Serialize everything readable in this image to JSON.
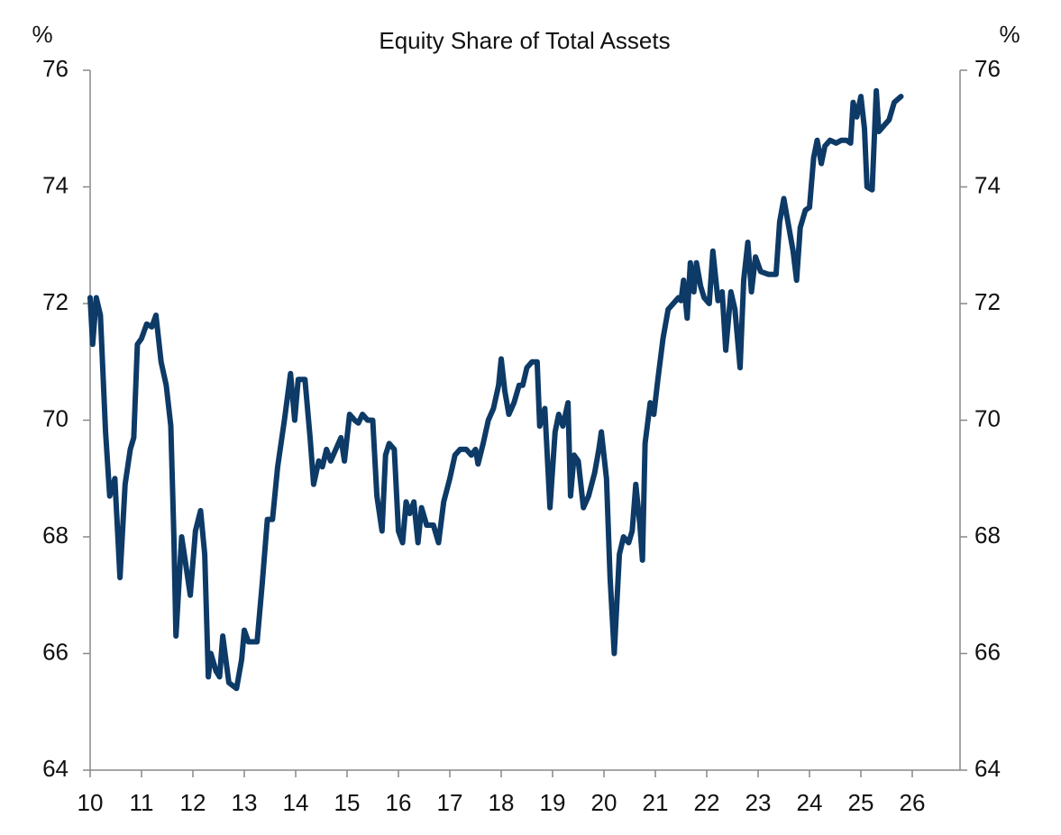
{
  "chart_data": {
    "type": "line",
    "title": "Equity Share of Total Assets",
    "y_label": "%",
    "y2_label": "%",
    "color": "#0d3a66",
    "x": [
      10.0,
      10.05,
      10.12,
      10.2,
      10.3,
      10.38,
      10.48,
      10.58,
      10.68,
      10.78,
      10.85,
      10.92,
      11.0,
      11.1,
      11.2,
      11.28,
      11.38,
      11.48,
      11.57,
      11.63,
      11.67,
      11.78,
      11.85,
      11.95,
      12.05,
      12.15,
      12.23,
      12.3,
      12.35,
      12.45,
      12.52,
      12.58,
      12.7,
      12.85,
      12.95,
      13.0,
      13.08,
      13.25,
      13.35,
      13.45,
      13.55,
      13.65,
      13.78,
      13.9,
      13.98,
      14.05,
      14.18,
      14.28,
      14.35,
      14.45,
      14.52,
      14.6,
      14.68,
      14.78,
      14.88,
      14.95,
      15.05,
      15.15,
      15.22,
      15.3,
      15.4,
      15.5,
      15.58,
      15.68,
      15.75,
      15.82,
      15.92,
      16.0,
      16.08,
      16.15,
      16.22,
      16.3,
      16.38,
      16.45,
      16.55,
      16.68,
      16.78,
      16.88,
      17.0,
      17.1,
      17.2,
      17.32,
      17.42,
      17.5,
      17.55,
      17.65,
      17.75,
      17.85,
      17.95,
      18.0,
      18.07,
      18.15,
      18.25,
      18.35,
      18.42,
      18.5,
      18.6,
      18.7,
      18.75,
      18.85,
      18.95,
      19.05,
      19.12,
      19.2,
      19.3,
      19.35,
      19.42,
      19.5,
      19.6,
      19.7,
      19.82,
      19.9,
      19.95,
      20.05,
      20.12,
      20.2,
      20.3,
      20.38,
      20.48,
      20.55,
      20.62,
      20.7,
      20.75,
      20.8,
      20.9,
      20.97,
      21.05,
      21.15,
      21.25,
      21.35,
      21.45,
      21.5,
      21.55,
      21.62,
      21.68,
      21.75,
      21.8,
      21.88,
      21.95,
      22.05,
      22.12,
      22.22,
      22.3,
      22.37,
      22.47,
      22.55,
      22.65,
      22.72,
      22.8,
      22.87,
      22.95,
      23.05,
      23.2,
      23.35,
      23.42,
      23.5,
      23.6,
      23.68,
      23.75,
      23.82,
      23.92,
      24.0,
      24.08,
      24.15,
      24.23,
      24.3,
      24.4,
      24.52,
      24.62,
      24.72,
      24.8,
      24.85,
      24.92,
      25.0,
      25.07,
      25.12,
      25.22,
      25.3,
      25.35,
      25.45,
      25.55,
      25.65,
      25.78
    ],
    "values": [
      72.1,
      71.3,
      72.1,
      71.8,
      69.8,
      68.7,
      69.0,
      67.3,
      68.9,
      69.5,
      69.7,
      71.3,
      71.4,
      71.65,
      71.6,
      71.8,
      71.0,
      70.6,
      69.9,
      68.0,
      66.3,
      68.0,
      67.6,
      67.0,
      68.1,
      68.45,
      67.7,
      65.6,
      66.0,
      65.7,
      65.6,
      66.3,
      65.5,
      65.4,
      65.9,
      66.4,
      66.2,
      66.2,
      67.2,
      68.3,
      68.3,
      69.2,
      70.0,
      70.8,
      70.0,
      70.7,
      70.7,
      69.7,
      68.9,
      69.3,
      69.2,
      69.5,
      69.3,
      69.5,
      69.7,
      69.3,
      70.1,
      70.0,
      69.95,
      70.1,
      70.0,
      70.0,
      68.7,
      68.1,
      69.4,
      69.6,
      69.5,
      68.1,
      67.9,
      68.6,
      68.4,
      68.6,
      67.9,
      68.5,
      68.2,
      68.2,
      67.9,
      68.6,
      69.0,
      69.4,
      69.5,
      69.5,
      69.4,
      69.5,
      69.25,
      69.6,
      70.0,
      70.2,
      70.6,
      71.05,
      70.5,
      70.1,
      70.3,
      70.6,
      70.6,
      70.9,
      71.0,
      71.0,
      69.9,
      70.2,
      68.5,
      69.8,
      70.1,
      69.9,
      70.3,
      68.7,
      69.4,
      69.3,
      68.5,
      68.7,
      69.1,
      69.5,
      69.8,
      69.0,
      67.3,
      66.0,
      67.7,
      68.0,
      67.9,
      68.1,
      68.9,
      68.2,
      67.6,
      69.6,
      70.3,
      70.1,
      70.7,
      71.4,
      71.9,
      72.0,
      72.1,
      72.05,
      72.4,
      71.75,
      72.7,
      72.2,
      72.7,
      72.3,
      72.1,
      72.0,
      72.9,
      72.05,
      72.2,
      71.2,
      72.2,
      71.9,
      70.9,
      72.4,
      73.05,
      72.2,
      72.8,
      72.55,
      72.5,
      72.5,
      73.4,
      73.8,
      73.3,
      72.9,
      72.4,
      73.3,
      73.6,
      73.65,
      74.5,
      74.8,
      74.4,
      74.7,
      74.8,
      74.75,
      74.8,
      74.8,
      74.75,
      75.45,
      75.2,
      75.55,
      75.0,
      74.0,
      73.95,
      75.65,
      74.95,
      75.05,
      75.15,
      75.45,
      75.55
    ],
    "xlim": [
      10,
      26.93
    ],
    "xticks": [
      10,
      11,
      12,
      13,
      14,
      15,
      16,
      17,
      18,
      19,
      20,
      21,
      22,
      23,
      24,
      25,
      26
    ],
    "ylim": [
      64,
      76
    ],
    "yticks": [
      64,
      66,
      68,
      70,
      72,
      74,
      76
    ],
    "y2lim": [
      64,
      76
    ],
    "y2ticks": [
      64,
      66,
      68,
      70,
      72,
      74,
      76
    ]
  }
}
